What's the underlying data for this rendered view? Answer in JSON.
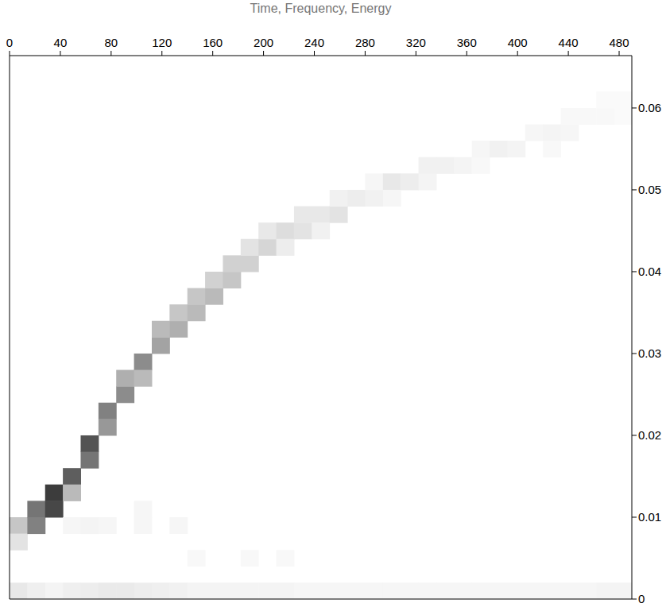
{
  "chart_data": {
    "type": "heatmap",
    "title": "Time, Frequency, Energy",
    "xlim": [
      0,
      490
    ],
    "xticks": [
      0,
      40,
      80,
      120,
      160,
      200,
      240,
      280,
      320,
      360,
      400,
      440,
      480
    ],
    "ylim": [
      0,
      0.0664
    ],
    "yticks": [
      0,
      0.01,
      0.02,
      0.03,
      0.04,
      0.05,
      0.06
    ],
    "zlim": [
      0,
      1
    ],
    "color": "#000000",
    "grid": false,
    "cells": [
      [
        0,
        14,
        0.008,
        0.01,
        0.25
      ],
      [
        0,
        14,
        0.006,
        0.008,
        0.12
      ],
      [
        14,
        28,
        0.01,
        0.012,
        0.6
      ],
      [
        14,
        28,
        0.008,
        0.01,
        0.55
      ],
      [
        28,
        42,
        0.012,
        0.014,
        0.85
      ],
      [
        28,
        42,
        0.01,
        0.012,
        0.8
      ],
      [
        42,
        56,
        0.014,
        0.016,
        0.7
      ],
      [
        42,
        56,
        0.012,
        0.014,
        0.3
      ],
      [
        56,
        70,
        0.018,
        0.02,
        0.75
      ],
      [
        56,
        70,
        0.016,
        0.018,
        0.6
      ],
      [
        70,
        84,
        0.022,
        0.024,
        0.55
      ],
      [
        70,
        84,
        0.02,
        0.022,
        0.45
      ],
      [
        84,
        98,
        0.024,
        0.026,
        0.5
      ],
      [
        84,
        98,
        0.026,
        0.028,
        0.35
      ],
      [
        98,
        112,
        0.028,
        0.03,
        0.5
      ],
      [
        98,
        112,
        0.026,
        0.028,
        0.3
      ],
      [
        112,
        126,
        0.03,
        0.032,
        0.4
      ],
      [
        112,
        126,
        0.032,
        0.034,
        0.3
      ],
      [
        126,
        140,
        0.032,
        0.034,
        0.35
      ],
      [
        126,
        140,
        0.034,
        0.036,
        0.25
      ],
      [
        140,
        154,
        0.034,
        0.036,
        0.3
      ],
      [
        140,
        154,
        0.036,
        0.038,
        0.25
      ],
      [
        154,
        168,
        0.036,
        0.038,
        0.3
      ],
      [
        154,
        168,
        0.038,
        0.04,
        0.2
      ],
      [
        168,
        182,
        0.038,
        0.04,
        0.25
      ],
      [
        168,
        182,
        0.04,
        0.042,
        0.2
      ],
      [
        182,
        196,
        0.04,
        0.042,
        0.2
      ],
      [
        182,
        196,
        0.042,
        0.044,
        0.12
      ],
      [
        196,
        210,
        0.042,
        0.044,
        0.18
      ],
      [
        196,
        210,
        0.044,
        0.046,
        0.1
      ],
      [
        210,
        224,
        0.044,
        0.046,
        0.15
      ],
      [
        210,
        224,
        0.042,
        0.044,
        0.08
      ],
      [
        224,
        238,
        0.044,
        0.046,
        0.12
      ],
      [
        224,
        238,
        0.046,
        0.048,
        0.1
      ],
      [
        238,
        252,
        0.046,
        0.048,
        0.1
      ],
      [
        238,
        252,
        0.044,
        0.046,
        0.06
      ],
      [
        252,
        266,
        0.046,
        0.048,
        0.12
      ],
      [
        252,
        266,
        0.048,
        0.05,
        0.06
      ],
      [
        266,
        280,
        0.048,
        0.05,
        0.08
      ],
      [
        280,
        294,
        0.048,
        0.05,
        0.06
      ],
      [
        280,
        294,
        0.05,
        0.052,
        0.04
      ],
      [
        294,
        308,
        0.05,
        0.052,
        0.1
      ],
      [
        294,
        308,
        0.048,
        0.05,
        0.04
      ],
      [
        308,
        322,
        0.05,
        0.052,
        0.08
      ],
      [
        322,
        336,
        0.05,
        0.052,
        0.05
      ],
      [
        322,
        336,
        0.052,
        0.054,
        0.06
      ],
      [
        336,
        350,
        0.052,
        0.054,
        0.06
      ],
      [
        350,
        364,
        0.052,
        0.054,
        0.05
      ],
      [
        364,
        378,
        0.054,
        0.056,
        0.04
      ],
      [
        364,
        378,
        0.052,
        0.054,
        0.03
      ],
      [
        378,
        392,
        0.054,
        0.056,
        0.06
      ],
      [
        392,
        406,
        0.054,
        0.056,
        0.05
      ],
      [
        406,
        420,
        0.056,
        0.058,
        0.04
      ],
      [
        420,
        434,
        0.056,
        0.058,
        0.05
      ],
      [
        420,
        434,
        0.054,
        0.056,
        0.03
      ],
      [
        434,
        448,
        0.056,
        0.058,
        0.04
      ],
      [
        434,
        448,
        0.058,
        0.06,
        0.03
      ],
      [
        448,
        462,
        0.058,
        0.06,
        0.03
      ],
      [
        462,
        476,
        0.058,
        0.06,
        0.03
      ],
      [
        462,
        476,
        0.06,
        0.062,
        0.02
      ],
      [
        476,
        490,
        0.06,
        0.062,
        0.02
      ],
      [
        476,
        490,
        0.058,
        0.06,
        0.02
      ],
      [
        42,
        56,
        0.008,
        0.01,
        0.04
      ],
      [
        56,
        70,
        0.008,
        0.01,
        0.05
      ],
      [
        70,
        84,
        0.008,
        0.01,
        0.04
      ],
      [
        98,
        112,
        0.008,
        0.01,
        0.04
      ],
      [
        98,
        112,
        0.01,
        0.012,
        0.04
      ],
      [
        126,
        140,
        0.008,
        0.01,
        0.04
      ],
      [
        140,
        154,
        0.004,
        0.006,
        0.03
      ],
      [
        182,
        196,
        0.004,
        0.006,
        0.03
      ],
      [
        210,
        224,
        0.004,
        0.006,
        0.03
      ],
      [
        0,
        14,
        0,
        0.002,
        0.1
      ],
      [
        14,
        28,
        0,
        0.002,
        0.07
      ],
      [
        28,
        42,
        0,
        0.002,
        0.05
      ],
      [
        42,
        56,
        0,
        0.002,
        0.07
      ],
      [
        56,
        70,
        0,
        0.002,
        0.08
      ],
      [
        70,
        84,
        0,
        0.002,
        0.09
      ],
      [
        84,
        98,
        0,
        0.002,
        0.09
      ],
      [
        98,
        112,
        0,
        0.002,
        0.08
      ],
      [
        112,
        126,
        0,
        0.002,
        0.07
      ],
      [
        126,
        140,
        0,
        0.002,
        0.06
      ],
      [
        140,
        154,
        0,
        0.002,
        0.05
      ],
      [
        154,
        168,
        0,
        0.002,
        0.05
      ],
      [
        168,
        182,
        0,
        0.002,
        0.05
      ],
      [
        182,
        196,
        0,
        0.002,
        0.05
      ],
      [
        196,
        210,
        0,
        0.002,
        0.05
      ],
      [
        210,
        224,
        0,
        0.002,
        0.05
      ],
      [
        224,
        238,
        0,
        0.002,
        0.04
      ],
      [
        238,
        252,
        0,
        0.002,
        0.04
      ],
      [
        252,
        266,
        0,
        0.002,
        0.04
      ],
      [
        266,
        280,
        0,
        0.002,
        0.04
      ],
      [
        280,
        294,
        0,
        0.002,
        0.04
      ],
      [
        294,
        308,
        0,
        0.002,
        0.04
      ],
      [
        308,
        322,
        0,
        0.002,
        0.04
      ],
      [
        322,
        336,
        0,
        0.002,
        0.04
      ],
      [
        336,
        350,
        0,
        0.002,
        0.04
      ],
      [
        350,
        364,
        0,
        0.002,
        0.04
      ],
      [
        364,
        378,
        0,
        0.002,
        0.04
      ],
      [
        378,
        392,
        0,
        0.002,
        0.04
      ],
      [
        392,
        406,
        0,
        0.002,
        0.04
      ],
      [
        406,
        420,
        0,
        0.002,
        0.04
      ],
      [
        420,
        434,
        0,
        0.002,
        0.04
      ],
      [
        434,
        448,
        0,
        0.002,
        0.04
      ],
      [
        448,
        462,
        0,
        0.002,
        0.04
      ],
      [
        462,
        476,
        0,
        0.002,
        0.05
      ],
      [
        476,
        490,
        0,
        0.002,
        0.05
      ]
    ]
  }
}
